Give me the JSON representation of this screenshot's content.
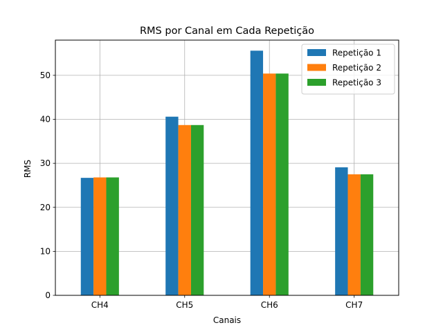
{
  "chart_data": {
    "type": "bar",
    "title": "RMS por Canal em Cada Repetição",
    "xlabel": "Canais",
    "ylabel": "RMS",
    "categories": [
      "CH4",
      "CH5",
      "CH6",
      "CH7"
    ],
    "series": [
      {
        "name": "Repetição 1",
        "color": "#1f77b4",
        "values": [
          26.7,
          40.6,
          55.6,
          29.1
        ]
      },
      {
        "name": "Repetição 2",
        "color": "#ff7f0e",
        "values": [
          26.8,
          38.7,
          50.4,
          27.5
        ]
      },
      {
        "name": "Repetição 3",
        "color": "#2ca02c",
        "values": [
          26.8,
          38.7,
          50.4,
          27.5
        ]
      }
    ],
    "ylim": [
      0,
      58
    ],
    "yticks": [
      0,
      10,
      20,
      30,
      40,
      50
    ],
    "grid": true,
    "legend_position": "top-right"
  }
}
